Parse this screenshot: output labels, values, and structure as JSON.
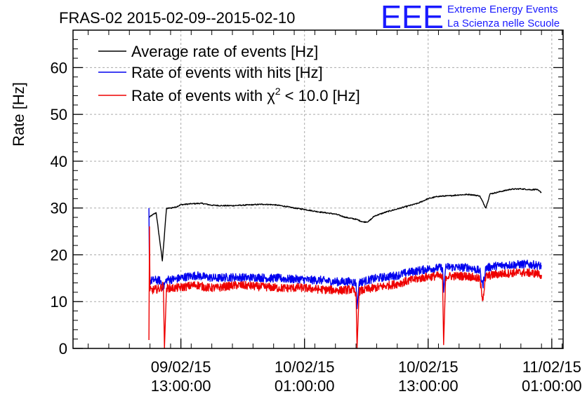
{
  "logo": {
    "mark": "EEE",
    "line1": "Extreme Energy Events",
    "line2": "La Scienza nelle Scuole",
    "color": "#1a1aff"
  },
  "chart_data": {
    "type": "line",
    "title": "FRAS-02 2015-02-09--2015-02-10",
    "xlabel": "",
    "ylabel": "Rate [Hz]",
    "x_unit": "hours since 2015-02-09 00:00",
    "xlim": [
      2.53,
      50.1
    ],
    "ylim": [
      0,
      68
    ],
    "yticks": [
      0,
      10,
      20,
      30,
      40,
      50,
      60
    ],
    "xticks": [
      {
        "x": 13,
        "line1": "09/02/15",
        "line2": "13:00:00"
      },
      {
        "x": 25,
        "line1": "10/02/15",
        "line2": "01:00:00"
      },
      {
        "x": 37,
        "line1": "10/02/15",
        "line2": "13:00:00"
      },
      {
        "x": 49,
        "line1": "11/02/15",
        "line2": "01:00:00"
      }
    ],
    "grid": true,
    "legend_position": "top-left",
    "series": [
      {
        "name": "Average rate of events [Hz]",
        "color": "#000000",
        "points": [
          [
            9.9,
            28.0
          ],
          [
            10.3,
            28.6
          ],
          [
            10.6,
            29.0
          ],
          [
            11.2,
            18.7
          ],
          [
            11.6,
            29.9
          ],
          [
            12.0,
            30.0
          ],
          [
            12.5,
            30.2
          ],
          [
            13.0,
            30.7
          ],
          [
            14.0,
            30.9
          ],
          [
            15.0,
            31.0
          ],
          [
            16.0,
            30.6
          ],
          [
            17.0,
            30.5
          ],
          [
            18.0,
            30.5
          ],
          [
            19.0,
            30.6
          ],
          [
            20.0,
            30.7
          ],
          [
            21.0,
            30.8
          ],
          [
            22.0,
            30.7
          ],
          [
            23.0,
            30.4
          ],
          [
            24.0,
            30.0
          ],
          [
            25.0,
            29.7
          ],
          [
            26.0,
            29.3
          ],
          [
            27.0,
            29.0
          ],
          [
            28.0,
            28.7
          ],
          [
            29.0,
            28.0
          ],
          [
            30.0,
            27.6
          ],
          [
            30.7,
            27.0
          ],
          [
            31.2,
            27.1
          ],
          [
            31.8,
            28.3
          ],
          [
            33.0,
            29.2
          ],
          [
            34.0,
            29.8
          ],
          [
            35.0,
            30.4
          ],
          [
            36.0,
            31.0
          ],
          [
            37.0,
            32.0
          ],
          [
            38.0,
            32.5
          ],
          [
            39.0,
            32.6
          ],
          [
            40.0,
            32.8
          ],
          [
            41.0,
            32.9
          ],
          [
            42.0,
            32.6
          ],
          [
            42.6,
            30.0
          ],
          [
            43.0,
            33.0
          ],
          [
            44.0,
            33.5
          ],
          [
            45.0,
            34.0
          ],
          [
            46.0,
            34.1
          ],
          [
            47.0,
            33.9
          ],
          [
            47.5,
            34.0
          ],
          [
            48.0,
            33.3
          ]
        ]
      },
      {
        "name": "Rate of events with hits [Hz]",
        "color": "#0000ee",
        "points": [
          [
            9.9,
            30.0
          ],
          [
            9.95,
            14.4
          ],
          [
            10.5,
            14.6
          ],
          [
            11.0,
            14.5
          ],
          [
            11.3,
            13.0
          ],
          [
            11.6,
            14.7
          ],
          [
            12.5,
            14.8
          ],
          [
            13.5,
            15.3
          ],
          [
            14.5,
            15.6
          ],
          [
            15.5,
            15.2
          ],
          [
            16.5,
            15.0
          ],
          [
            17.5,
            15.2
          ],
          [
            18.5,
            15.2
          ],
          [
            19.5,
            15.1
          ],
          [
            20.5,
            15.2
          ],
          [
            21.5,
            15.0
          ],
          [
            22.5,
            15.0
          ],
          [
            23.5,
            14.8
          ],
          [
            24.5,
            14.8
          ],
          [
            25.5,
            14.6
          ],
          [
            26.5,
            14.6
          ],
          [
            27.5,
            14.3
          ],
          [
            28.5,
            14.2
          ],
          [
            29.5,
            14.3
          ],
          [
            30.0,
            14.0
          ],
          [
            30.1,
            8.5
          ],
          [
            30.3,
            14.1
          ],
          [
            31.0,
            14.5
          ],
          [
            32.0,
            15.0
          ],
          [
            33.0,
            15.3
          ],
          [
            34.0,
            15.6
          ],
          [
            35.0,
            16.2
          ],
          [
            36.0,
            16.6
          ],
          [
            37.0,
            17.0
          ],
          [
            38.0,
            17.2
          ],
          [
            38.4,
            17.2
          ],
          [
            38.5,
            12.0
          ],
          [
            38.7,
            17.4
          ],
          [
            40.0,
            17.3
          ],
          [
            41.0,
            17.3
          ],
          [
            42.0,
            16.6
          ],
          [
            42.3,
            13.4
          ],
          [
            42.6,
            17.2
          ],
          [
            43.5,
            17.6
          ],
          [
            44.5,
            17.8
          ],
          [
            45.5,
            17.9
          ],
          [
            46.5,
            18.0
          ],
          [
            47.5,
            17.8
          ],
          [
            48.0,
            17.6
          ]
        ]
      },
      {
        "name": "Rate of events with χ² < 10.0 [Hz]",
        "label_main": "Rate of events with χ",
        "label_sup": "2",
        "label_tail": " < 10.0 [Hz]",
        "color": "#ee0000",
        "points": [
          [
            9.9,
            1.8
          ],
          [
            9.95,
            26.0
          ],
          [
            10.0,
            12.3
          ],
          [
            10.5,
            12.6
          ],
          [
            11.0,
            12.8
          ],
          [
            11.3,
            13.5
          ],
          [
            11.4,
            0.0
          ],
          [
            11.6,
            12.9
          ],
          [
            12.5,
            12.9
          ],
          [
            13.5,
            13.2
          ],
          [
            14.5,
            13.6
          ],
          [
            15.5,
            13.0
          ],
          [
            16.5,
            12.9
          ],
          [
            17.5,
            13.3
          ],
          [
            18.5,
            13.5
          ],
          [
            19.5,
            13.4
          ],
          [
            20.5,
            13.2
          ],
          [
            21.5,
            13.1
          ],
          [
            22.5,
            12.9
          ],
          [
            23.5,
            12.9
          ],
          [
            24.5,
            13.0
          ],
          [
            25.5,
            12.8
          ],
          [
            26.5,
            12.6
          ],
          [
            27.5,
            12.5
          ],
          [
            28.5,
            12.4
          ],
          [
            29.5,
            12.6
          ],
          [
            30.0,
            12.0
          ],
          [
            30.1,
            0.0
          ],
          [
            30.3,
            12.2
          ],
          [
            31.0,
            12.6
          ],
          [
            32.0,
            13.0
          ],
          [
            33.0,
            13.4
          ],
          [
            34.0,
            13.8
          ],
          [
            35.0,
            14.4
          ],
          [
            36.0,
            14.9
          ],
          [
            37.0,
            15.3
          ],
          [
            38.0,
            15.5
          ],
          [
            38.4,
            15.0
          ],
          [
            38.5,
            0.8
          ],
          [
            38.7,
            15.4
          ],
          [
            40.0,
            15.5
          ],
          [
            41.0,
            15.4
          ],
          [
            42.0,
            14.8
          ],
          [
            42.3,
            10.5
          ],
          [
            42.6,
            15.4
          ],
          [
            43.5,
            15.8
          ],
          [
            44.5,
            16.0
          ],
          [
            45.5,
            16.2
          ],
          [
            46.5,
            16.2
          ],
          [
            47.5,
            16.0
          ],
          [
            48.0,
            15.7
          ]
        ]
      }
    ]
  }
}
